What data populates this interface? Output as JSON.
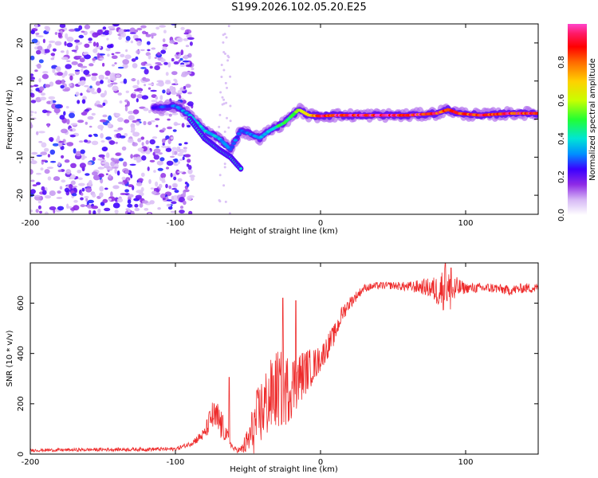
{
  "title": "S199.2026.102.05.20.E25",
  "colors": {
    "snr_line": "#ee2b2b",
    "frame": "#000000",
    "scatter": "#7a22e0",
    "colormap": [
      "#ffffff",
      "#d9c2f5",
      "#8f2be6",
      "#3b00ff",
      "#00a3ff",
      "#00e5d5",
      "#33ff44",
      "#c8ff00",
      "#ffd000",
      "#ff5a00",
      "#ff0000",
      "#ff2288",
      "#ff66dd"
    ]
  },
  "chart_data": [
    {
      "type": "heatmap",
      "name": "spectrogram",
      "xlabel": "Height of straight line (km)",
      "ylabel": "Frequency (Hz)",
      "xlim": [
        -200,
        150
      ],
      "ylim": [
        -25,
        25
      ],
      "xticks": [
        -200,
        -100,
        0,
        100
      ],
      "xtick_labels": [
        "-200",
        "-100",
        "0",
        "100"
      ],
      "yticks": [
        -20,
        -10,
        0,
        10,
        20
      ],
      "ytick_labels": [
        "-20",
        "-10",
        "0",
        "10",
        "20"
      ],
      "ridge": {
        "description": "frequency of strongest amplitude vs height",
        "x": [
          -115,
          -100,
          -90,
          -80,
          -70,
          -62,
          -55,
          -48,
          -42,
          -35,
          -25,
          -15,
          -8,
          0,
          10,
          30,
          60,
          80,
          88,
          95,
          110,
          130,
          150
        ],
        "y": [
          3,
          3.5,
          1,
          -3,
          -5,
          -8,
          -3,
          -4,
          -5,
          -3,
          -1,
          2.5,
          1,
          0.8,
          1,
          1,
          1,
          1.5,
          2.5,
          1.5,
          1,
          1.5,
          1.5
        ],
        "amplitude": [
          0.25,
          0.3,
          0.35,
          0.4,
          0.35,
          0.3,
          0.3,
          0.3,
          0.35,
          0.4,
          0.5,
          0.55,
          0.7,
          0.9,
          0.95,
          0.95,
          0.95,
          0.9,
          0.85,
          0.85,
          0.9,
          0.9,
          0.9
        ]
      },
      "secondary_branch": {
        "x": [
          -90,
          -80,
          -70,
          -62,
          -55
        ],
        "y": [
          0,
          -5,
          -8,
          -10,
          -13
        ]
      },
      "noise_region_x": [
        -200,
        -100
      ]
    },
    {
      "type": "colorbar",
      "label": "Normalized spectral amplitude",
      "range": [
        0,
        1
      ],
      "ticks": [
        0.0,
        0.2,
        0.4,
        0.6,
        0.8
      ],
      "tick_labels": [
        "0.0",
        "0.2",
        "0.4",
        "0.6",
        "0.8"
      ]
    },
    {
      "type": "line",
      "name": "snr",
      "xlabel": "Height of straight line (km)",
      "ylabel": "SNR (10 * v/v)",
      "xlim": [
        -200,
        150
      ],
      "ylim": [
        0,
        760
      ],
      "xticks": [
        -200,
        -100,
        0,
        100
      ],
      "xtick_labels": [
        "-200",
        "-100",
        "0",
        "100"
      ],
      "yticks": [
        0,
        200,
        400,
        600
      ],
      "ytick_labels": [
        "0",
        "200",
        "400",
        "600"
      ],
      "envelope": {
        "x": [
          -200,
          -150,
          -100,
          -90,
          -80,
          -75,
          -70,
          -65,
          -60,
          -55,
          -50,
          -45,
          -40,
          -35,
          -30,
          -25,
          -20,
          -15,
          -10,
          -5,
          0,
          5,
          10,
          15,
          20,
          25,
          30,
          40,
          50,
          60,
          70,
          75,
          80,
          85,
          90,
          95,
          100,
          110,
          120,
          130,
          140,
          150
        ],
        "mean": [
          15,
          18,
          20,
          40,
          80,
          150,
          130,
          80,
          20,
          15,
          50,
          120,
          180,
          220,
          260,
          250,
          270,
          300,
          330,
          350,
          380,
          430,
          480,
          560,
          600,
          630,
          660,
          670,
          670,
          665,
          665,
          660,
          650,
          660,
          640,
          660,
          660,
          660,
          660,
          650,
          660,
          660
        ],
        "spread": [
          6,
          7,
          8,
          10,
          25,
          60,
          80,
          30,
          8,
          15,
          60,
          120,
          140,
          150,
          160,
          150,
          130,
          110,
          90,
          70,
          50,
          50,
          40,
          35,
          25,
          20,
          15,
          15,
          15,
          20,
          30,
          40,
          60,
          90,
          80,
          40,
          20,
          20,
          20,
          20,
          20,
          20
        ]
      },
      "peaks": [
        {
          "x": -63,
          "y": 305
        },
        {
          "x": -26,
          "y": 620
        },
        {
          "x": -17,
          "y": 610
        },
        {
          "x": 86,
          "y": 760
        },
        {
          "x": 90,
          "y": 740
        }
      ]
    }
  ]
}
